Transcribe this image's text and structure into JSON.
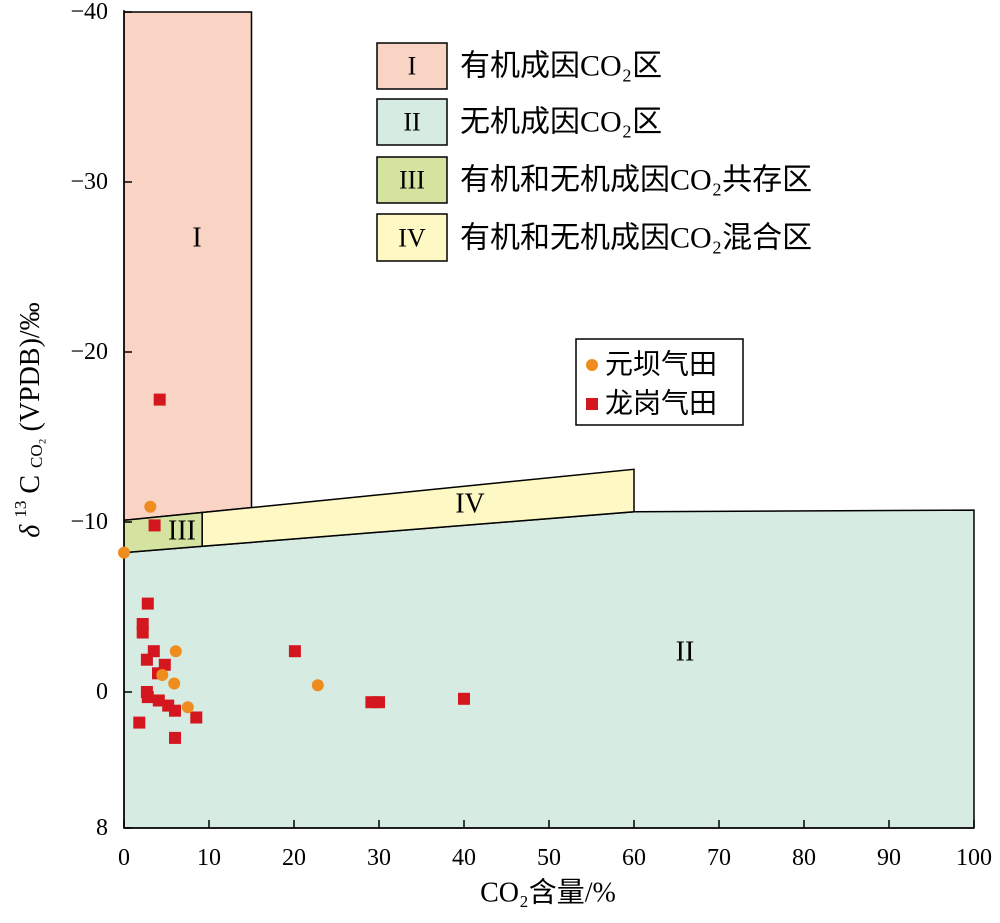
{
  "chart_data": {
    "type": "scatter",
    "xlabel": "CO₂含量/%",
    "ylabel": {
      "delta": "δ",
      "sup": "13",
      "base": "C",
      "sub": "CO₂",
      "rest": "(VPDB)/‰"
    },
    "xlim": [
      0,
      100
    ],
    "ylim": [
      -40,
      8
    ],
    "y_axis_reversed": true,
    "grid": false,
    "x_ticks": [
      {
        "value": 0,
        "label": "0"
      },
      {
        "value": 10,
        "label": "10"
      },
      {
        "value": 20,
        "label": "20"
      },
      {
        "value": 30,
        "label": "30"
      },
      {
        "value": 40,
        "label": "40"
      },
      {
        "value": 50,
        "label": "50"
      },
      {
        "value": 60,
        "label": "60"
      },
      {
        "value": 70,
        "label": "70"
      },
      {
        "value": 80,
        "label": "80"
      },
      {
        "value": 90,
        "label": "90"
      },
      {
        "value": 100,
        "label": "100"
      }
    ],
    "y_ticks": [
      {
        "value": -40,
        "label": "−40"
      },
      {
        "value": -30,
        "label": "−30"
      },
      {
        "value": -20,
        "label": "−20"
      },
      {
        "value": -10,
        "label": "−10"
      },
      {
        "value": 0,
        "label": "0"
      },
      {
        "value": 8,
        "label": "8"
      }
    ],
    "regions": [
      {
        "label": "I",
        "name": "有机成因CO₂区",
        "color": "#f9d3c3",
        "polygon": [
          [
            0,
            -40
          ],
          [
            15,
            -40
          ],
          [
            15,
            -10.85
          ],
          [
            0,
            -10.1
          ]
        ]
      },
      {
        "label": "II",
        "name": "无机成因CO₂区",
        "color": "#d6ebe1",
        "polygon": [
          [
            0,
            -8.2
          ],
          [
            9.2,
            -8.57
          ],
          [
            60,
            -10.6
          ],
          [
            100,
            -10.7
          ],
          [
            100,
            8
          ],
          [
            0,
            8
          ]
        ]
      },
      {
        "label": "III",
        "name": "有机和无机成因CO₂共存区",
        "color": "#d5e3a0",
        "polygon": [
          [
            0,
            -10.1
          ],
          [
            9.2,
            -10.56
          ],
          [
            9.2,
            -8.57
          ],
          [
            0,
            -8.2
          ]
        ]
      },
      {
        "label": "IV",
        "name": "有机和无机成因CO₂混合区",
        "color": "#fdf8c4",
        "polygon": [
          [
            9.2,
            -10.56
          ],
          [
            60,
            -13.1
          ],
          [
            60,
            -10.6
          ],
          [
            9.2,
            -8.57
          ]
        ]
      }
    ],
    "series": [
      {
        "name": "元坝气田",
        "marker": "circle",
        "color": "#ef8c1e",
        "points": [
          {
            "x": 0,
            "y": -8.2
          },
          {
            "x": 3.1,
            "y": -10.9
          },
          {
            "x": 6.1,
            "y": -2.4
          },
          {
            "x": 5.9,
            "y": -0.5
          },
          {
            "x": 4.5,
            "y": -1.0
          },
          {
            "x": 7.5,
            "y": 0.9
          },
          {
            "x": 22.8,
            "y": -0.4
          }
        ]
      },
      {
        "name": "龙岗气田",
        "marker": "square",
        "color": "#d4161e",
        "points": [
          {
            "x": 4.2,
            "y": -17.2
          },
          {
            "x": 3.6,
            "y": -9.8
          },
          {
            "x": 2.8,
            "y": -5.2
          },
          {
            "x": 2.2,
            "y": -4.0
          },
          {
            "x": 2.2,
            "y": -3.5
          },
          {
            "x": 3.5,
            "y": -2.4
          },
          {
            "x": 2.7,
            "y": -1.9
          },
          {
            "x": 4.8,
            "y": -1.6
          },
          {
            "x": 4.0,
            "y": -1.1
          },
          {
            "x": 2.7,
            "y": 0.0
          },
          {
            "x": 2.8,
            "y": 0.3
          },
          {
            "x": 4.1,
            "y": 0.5
          },
          {
            "x": 5.2,
            "y": 0.8
          },
          {
            "x": 6.0,
            "y": 1.1
          },
          {
            "x": 8.5,
            "y": 1.5
          },
          {
            "x": 1.8,
            "y": 1.8
          },
          {
            "x": 6.0,
            "y": 2.7
          },
          {
            "x": 20.1,
            "y": -2.4
          },
          {
            "x": 29.1,
            "y": 0.6
          },
          {
            "x": 30.0,
            "y": 0.6
          },
          {
            "x": 40.0,
            "y": 0.4
          }
        ]
      }
    ],
    "region_legend_placement": "top",
    "series_legend_placement": "right"
  }
}
